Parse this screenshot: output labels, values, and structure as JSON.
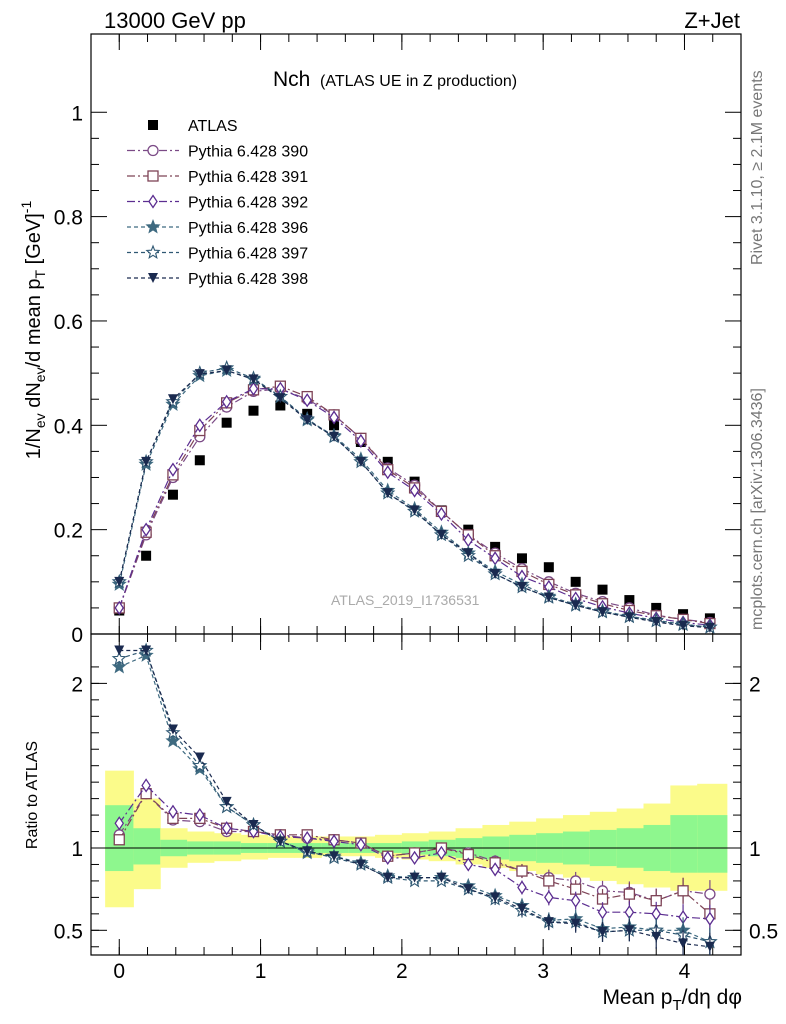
{
  "header": {
    "left": "13000 GeV pp",
    "right": "Z+Jet"
  },
  "side_labels": {
    "rivet": "Rivet 3.1.10, ≥ 2.1M events",
    "mcplots": "mcplots.cern.ch [arXiv:1306.3436]"
  },
  "colors": {
    "atlas": "#000000",
    "p390": "#7b4a86",
    "p391": "#7e4356",
    "p392": "#5c2e91",
    "p396": "#3e6a80",
    "p397": "#2f5873",
    "p398": "#1a2a4f",
    "band_stat": "#8ef78e",
    "band_tot": "#fbfb8a"
  },
  "chart_data": [
    {
      "type": "scatter",
      "title_main": "Nch",
      "title_sub": "(ATLAS UE in Z production)",
      "watermark": "ATLAS_2019_I1736531",
      "ylabel": "1/N_ev dN_ev/d mean p_T [GeV]^-1",
      "xlabel": "Mean p_T/dη dφ",
      "xlim": [
        -0.2,
        4.4
      ],
      "ylim": [
        0,
        1.15
      ],
      "yticks": [
        0,
        0.2,
        0.4,
        0.6,
        0.8,
        1
      ],
      "ytick_labels": [
        "0",
        "0.2",
        "0.4",
        "0.6",
        "0.8",
        "1"
      ],
      "x": [
        0.0,
        0.19,
        0.38,
        0.57,
        0.76,
        0.95,
        1.14,
        1.33,
        1.52,
        1.71,
        1.9,
        2.09,
        2.28,
        2.47,
        2.66,
        2.85,
        3.04,
        3.23,
        3.42,
        3.61,
        3.8,
        3.99,
        4.18
      ],
      "series": [
        {
          "name": "ATLAS",
          "marker": "square-filled",
          "color": "#000000",
          "values": [
            0.045,
            0.15,
            0.267,
            0.333,
            0.405,
            0.428,
            0.438,
            0.422,
            0.4,
            0.368,
            0.33,
            0.292,
            0.237,
            0.2,
            0.167,
            0.145,
            0.128,
            0.1,
            0.085,
            0.065,
            0.05,
            0.038,
            0.03
          ]
        },
        {
          "name": "Pythia 6.428 390",
          "marker": "circle-open",
          "dash": "8,3,2,3",
          "color": "#7b4a86",
          "values": [
            0.05,
            0.19,
            0.3,
            0.378,
            0.435,
            0.465,
            0.47,
            0.45,
            0.42,
            0.375,
            0.318,
            0.285,
            0.235,
            0.19,
            0.155,
            0.125,
            0.1,
            0.078,
            0.062,
            0.05,
            0.036,
            0.028,
            0.022
          ]
        },
        {
          "name": "Pythia 6.428 391",
          "marker": "square-open",
          "dash": "8,3,2,3",
          "color": "#7e4356",
          "values": [
            0.05,
            0.195,
            0.305,
            0.39,
            0.443,
            0.468,
            0.475,
            0.455,
            0.42,
            0.375,
            0.315,
            0.28,
            0.235,
            0.19,
            0.15,
            0.12,
            0.095,
            0.075,
            0.058,
            0.045,
            0.035,
            0.028,
            0.02
          ]
        },
        {
          "name": "Pythia 6.428 392",
          "marker": "diamond-open",
          "dash": "8,3,2,3",
          "color": "#5c2e91",
          "values": [
            0.05,
            0.2,
            0.315,
            0.4,
            0.445,
            0.47,
            0.47,
            0.448,
            0.415,
            0.37,
            0.31,
            0.275,
            0.23,
            0.18,
            0.145,
            0.11,
            0.09,
            0.068,
            0.052,
            0.04,
            0.03,
            0.022,
            0.017
          ]
        },
        {
          "name": "Pythia 6.428 396",
          "marker": "star-filled",
          "dash": "4,3",
          "color": "#3e6a80",
          "values": [
            0.095,
            0.325,
            0.44,
            0.495,
            0.505,
            0.488,
            0.455,
            0.41,
            0.38,
            0.335,
            0.275,
            0.24,
            0.195,
            0.155,
            0.12,
            0.095,
            0.072,
            0.057,
            0.044,
            0.034,
            0.026,
            0.019,
            0.013
          ]
        },
        {
          "name": "Pythia 6.428 397",
          "marker": "star-open",
          "dash": "4,3",
          "color": "#2f5873",
          "values": [
            0.1,
            0.33,
            0.445,
            0.5,
            0.51,
            0.49,
            0.455,
            0.412,
            0.378,
            0.33,
            0.27,
            0.235,
            0.19,
            0.15,
            0.115,
            0.09,
            0.07,
            0.055,
            0.042,
            0.033,
            0.025,
            0.018,
            0.013
          ]
        },
        {
          "name": "Pythia 6.428 398",
          "marker": "triangle-down-filled",
          "dash": "4,3",
          "color": "#1a2a4f",
          "values": [
            0.1,
            0.33,
            0.45,
            0.498,
            0.505,
            0.488,
            0.452,
            0.41,
            0.378,
            0.33,
            0.27,
            0.237,
            0.19,
            0.155,
            0.115,
            0.09,
            0.07,
            0.055,
            0.042,
            0.032,
            0.023,
            0.016,
            0.012
          ]
        }
      ]
    },
    {
      "type": "scatter",
      "ylabel": "Ratio to ATLAS",
      "xlim": [
        -0.2,
        4.4
      ],
      "ylim": [
        0.35,
        2.3
      ],
      "yticks": [
        0.5,
        1,
        2
      ],
      "ytick_labels": [
        "0.5",
        "1",
        "2"
      ],
      "xticks": [
        0,
        1,
        2,
        3,
        4
      ],
      "xtick_labels": [
        "0",
        "1",
        "2",
        "3",
        "4"
      ],
      "x": [
        0.0,
        0.19,
        0.38,
        0.57,
        0.76,
        0.95,
        1.14,
        1.33,
        1.52,
        1.71,
        1.9,
        2.09,
        2.28,
        2.47,
        2.66,
        2.85,
        3.04,
        3.23,
        3.42,
        3.61,
        3.8,
        3.99,
        4.18
      ],
      "bin_edges": [
        -0.1,
        0.1,
        0.29,
        0.48,
        0.67,
        0.86,
        1.05,
        1.24,
        1.43,
        1.62,
        1.81,
        2.0,
        2.19,
        2.38,
        2.57,
        2.76,
        2.95,
        3.14,
        3.33,
        3.52,
        3.71,
        3.9,
        4.09,
        4.3
      ],
      "band_tot_hi": [
        1.47,
        1.3,
        1.12,
        1.1,
        1.09,
        1.08,
        1.07,
        1.07,
        1.07,
        1.07,
        1.08,
        1.09,
        1.1,
        1.12,
        1.14,
        1.16,
        1.18,
        1.2,
        1.22,
        1.24,
        1.27,
        1.38,
        1.39
      ],
      "band_tot_lo": [
        0.64,
        0.75,
        0.88,
        0.91,
        0.92,
        0.93,
        0.94,
        0.94,
        0.95,
        0.95,
        0.94,
        0.93,
        0.92,
        0.9,
        0.88,
        0.86,
        0.84,
        0.82,
        0.8,
        0.78,
        0.76,
        0.74,
        0.74
      ],
      "band_stat_hi": [
        1.26,
        1.12,
        1.05,
        1.04,
        1.04,
        1.03,
        1.03,
        1.03,
        1.03,
        1.03,
        1.03,
        1.04,
        1.05,
        1.06,
        1.07,
        1.08,
        1.09,
        1.1,
        1.11,
        1.12,
        1.14,
        1.2,
        1.2
      ],
      "band_stat_lo": [
        0.86,
        0.9,
        0.95,
        0.96,
        0.96,
        0.97,
        0.97,
        0.97,
        0.97,
        0.97,
        0.97,
        0.96,
        0.95,
        0.94,
        0.93,
        0.92,
        0.91,
        0.9,
        0.89,
        0.88,
        0.86,
        0.85,
        0.85
      ],
      "series": [
        {
          "name": "Pythia 6.428 390",
          "color": "#7b4a86",
          "values": [
            1.08,
            1.33,
            1.17,
            1.16,
            1.1,
            1.1,
            1.08,
            1.06,
            1.05,
            1.03,
            0.95,
            0.97,
            1.0,
            0.97,
            0.92,
            0.86,
            0.82,
            0.8,
            0.74,
            0.73,
            0.68,
            0.74,
            0.72
          ]
        },
        {
          "name": "Pythia 6.428 391",
          "color": "#7e4356",
          "values": [
            1.05,
            1.33,
            1.18,
            1.18,
            1.12,
            1.1,
            1.08,
            1.08,
            1.05,
            1.03,
            0.95,
            0.97,
            1.0,
            0.96,
            0.91,
            0.86,
            0.8,
            0.75,
            0.69,
            0.72,
            0.68,
            0.74,
            0.6
          ]
        },
        {
          "name": "Pythia 6.428 392",
          "color": "#5c2e91",
          "values": [
            1.15,
            1.38,
            1.22,
            1.2,
            1.12,
            1.1,
            1.07,
            1.06,
            1.04,
            1.02,
            0.94,
            0.94,
            0.97,
            0.9,
            0.87,
            0.76,
            0.7,
            0.68,
            0.61,
            0.61,
            0.6,
            0.58,
            0.57
          ]
        },
        {
          "name": "Pythia 6.428 396",
          "color": "#3e6a80",
          "values": [
            2.1,
            2.17,
            1.65,
            1.48,
            1.25,
            1.14,
            1.04,
            0.97,
            0.95,
            0.91,
            0.83,
            0.82,
            0.82,
            0.77,
            0.71,
            0.65,
            0.56,
            0.57,
            0.51,
            0.52,
            0.5,
            0.5,
            0.43
          ]
        },
        {
          "name": "Pythia 6.428 397",
          "color": "#2f5873",
          "values": [
            2.15,
            2.2,
            1.7,
            1.5,
            1.25,
            1.14,
            1.04,
            0.98,
            0.94,
            0.9,
            0.82,
            0.8,
            0.8,
            0.75,
            0.69,
            0.62,
            0.55,
            0.55,
            0.49,
            0.5,
            0.5,
            0.47,
            0.43
          ]
        },
        {
          "name": "Pythia 6.428 398",
          "color": "#1a2a4f",
          "values": [
            2.2,
            2.2,
            1.72,
            1.55,
            1.28,
            1.14,
            1.04,
            0.98,
            0.95,
            0.9,
            0.82,
            0.82,
            0.82,
            0.75,
            0.7,
            0.63,
            0.55,
            0.54,
            0.49,
            0.5,
            0.46,
            0.42,
            0.4
          ]
        }
      ]
    }
  ]
}
